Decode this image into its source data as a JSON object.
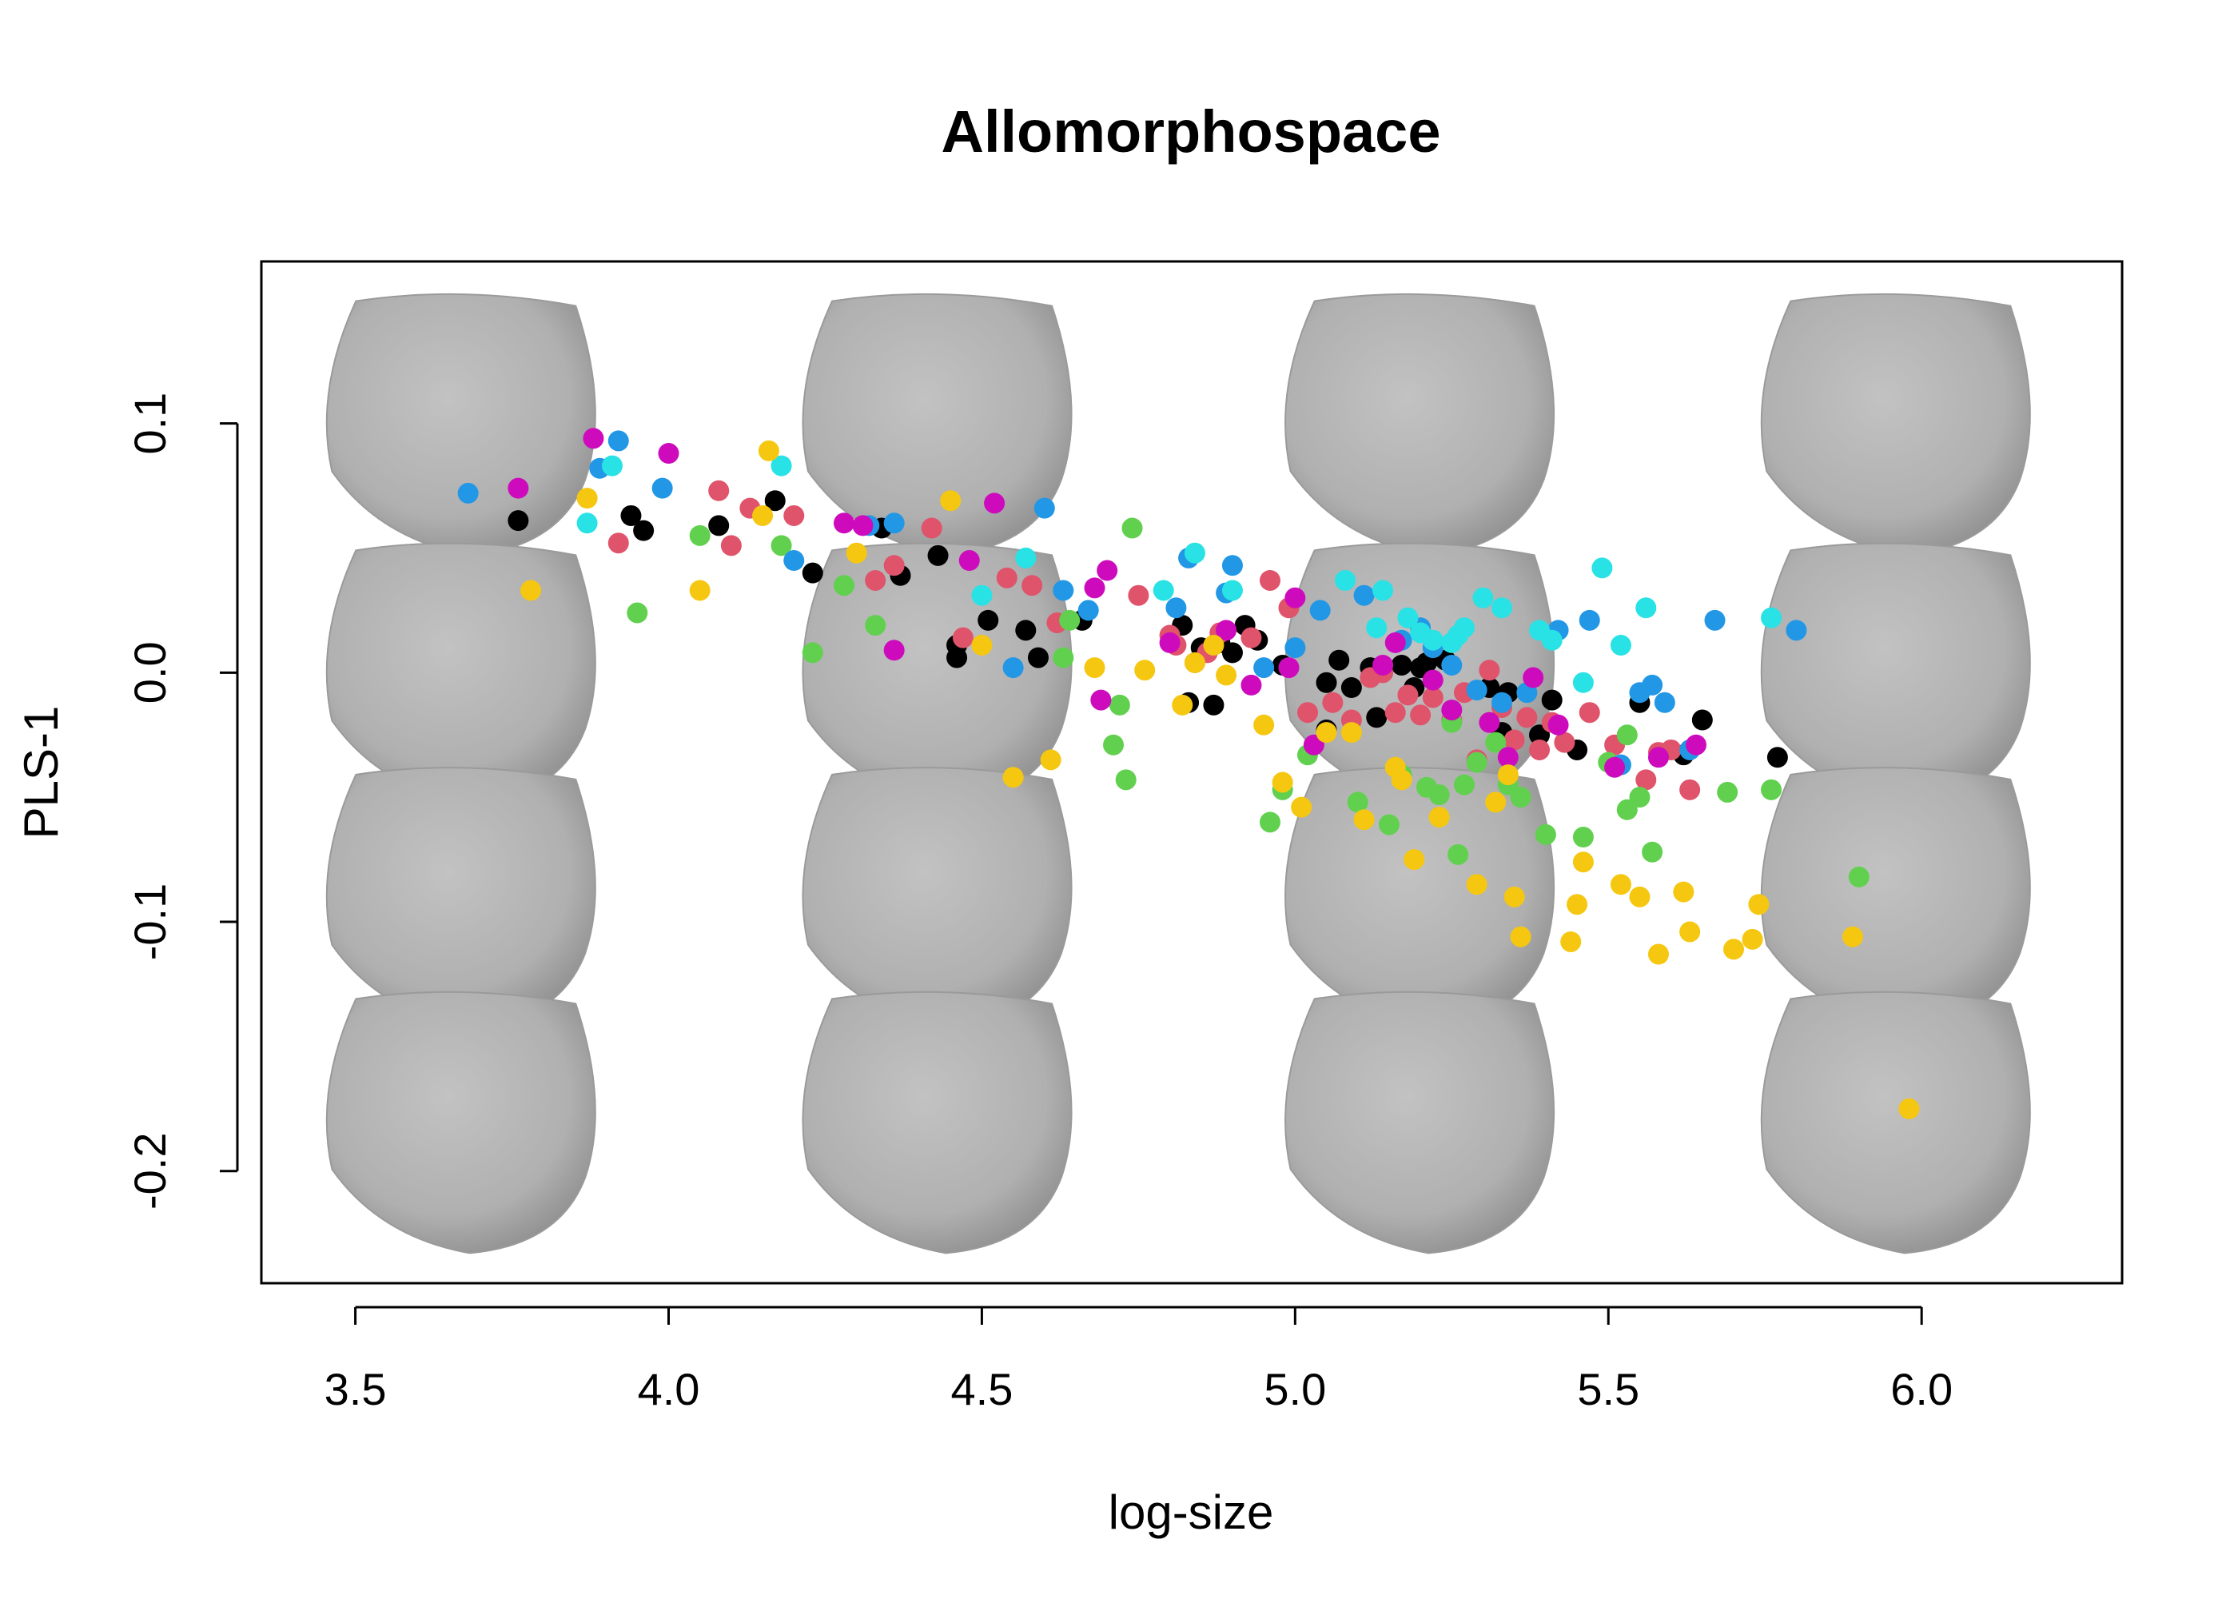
{
  "chart_data": {
    "type": "scatter",
    "title": "Allomorphospace",
    "xlabel": "log-size",
    "ylabel": "PLS-1",
    "xlim": [
      3.35,
      6.32
    ],
    "ylim": [
      -0.245,
      0.165
    ],
    "x_ticks": [
      "3.5",
      "4.0",
      "4.5",
      "5.0",
      "5.5",
      "6.0"
    ],
    "y_ticks": [
      "-0.2",
      "-0.1",
      "0.0",
      "0.1"
    ],
    "grid": false,
    "background_shapes": {
      "description_columns_x": [
        3.67,
        4.43,
        5.2,
        5.96
      ],
      "rows_y": [
        0.1,
        0.0,
        -0.09,
        -0.18
      ],
      "color": "#b4b4b4"
    },
    "series": [
      {
        "color": "#000000",
        "points": [
          [
            3.76,
            0.061
          ],
          [
            3.94,
            0.063
          ],
          [
            3.96,
            0.057
          ],
          [
            4.08,
            0.059
          ],
          [
            4.17,
            0.069
          ],
          [
            4.23,
            0.04
          ],
          [
            4.34,
            0.058
          ],
          [
            4.37,
            0.039
          ],
          [
            4.43,
            0.047
          ],
          [
            4.46,
            0.011
          ],
          [
            4.46,
            0.006
          ],
          [
            4.51,
            0.021
          ],
          [
            4.57,
            0.017
          ],
          [
            4.59,
            0.006
          ],
          [
            4.66,
            0.021
          ],
          [
            4.82,
            0.019
          ],
          [
            4.83,
            -0.012
          ],
          [
            4.85,
            0.01
          ],
          [
            4.87,
            -0.013
          ],
          [
            4.9,
            0.008
          ],
          [
            4.92,
            0.019
          ],
          [
            4.94,
            0.013
          ],
          [
            4.98,
            0.003
          ],
          [
            5.05,
            -0.004
          ],
          [
            5.07,
            0.005
          ],
          [
            5.09,
            -0.006
          ],
          [
            5.13,
            -0.018
          ],
          [
            5.17,
            0.003
          ],
          [
            5.19,
            -0.006
          ],
          [
            5.2,
            0.002
          ],
          [
            5.21,
            0.004
          ],
          [
            5.24,
            0.005
          ],
          [
            5.31,
            -0.006
          ],
          [
            5.33,
            -0.024
          ],
          [
            5.34,
            -0.008
          ],
          [
            5.39,
            -0.025
          ],
          [
            5.41,
            -0.011
          ],
          [
            5.45,
            -0.031
          ],
          [
            5.55,
            -0.012
          ],
          [
            5.62,
            -0.033
          ],
          [
            5.65,
            -0.019
          ],
          [
            5.77,
            -0.034
          ],
          [
            5.05,
            -0.023
          ],
          [
            5.12,
            0.002
          ],
          [
            4.88,
            0.012
          ]
        ]
      },
      {
        "color": "#df536b",
        "points": [
          [
            3.92,
            0.052
          ],
          [
            4.08,
            0.073
          ],
          [
            4.1,
            0.051
          ],
          [
            4.13,
            0.066
          ],
          [
            4.2,
            0.063
          ],
          [
            4.33,
            0.037
          ],
          [
            4.36,
            0.043
          ],
          [
            4.42,
            0.058
          ],
          [
            4.47,
            0.014
          ],
          [
            4.54,
            0.038
          ],
          [
            4.58,
            0.035
          ],
          [
            4.62,
            0.02
          ],
          [
            4.75,
            0.031
          ],
          [
            4.8,
            0.015
          ],
          [
            4.81,
            0.011
          ],
          [
            4.84,
            0.004
          ],
          [
            4.86,
            0.008
          ],
          [
            4.88,
            0.016
          ],
          [
            4.93,
            0.014
          ],
          [
            4.96,
            0.037
          ],
          [
            4.99,
            0.026
          ],
          [
            5.02,
            -0.016
          ],
          [
            5.06,
            -0.012
          ],
          [
            5.09,
            -0.019
          ],
          [
            5.12,
            -0.002
          ],
          [
            5.14,
            0.0
          ],
          [
            5.18,
            -0.009
          ],
          [
            5.2,
            -0.017
          ],
          [
            5.22,
            -0.01
          ],
          [
            5.25,
            -0.019
          ],
          [
            5.27,
            -0.008
          ],
          [
            5.31,
            0.001
          ],
          [
            5.33,
            -0.014
          ],
          [
            5.35,
            -0.027
          ],
          [
            5.37,
            -0.018
          ],
          [
            5.39,
            -0.031
          ],
          [
            5.41,
            -0.02
          ],
          [
            5.43,
            -0.028
          ],
          [
            5.47,
            -0.016
          ],
          [
            5.51,
            -0.029
          ],
          [
            5.56,
            -0.043
          ],
          [
            5.58,
            -0.032
          ],
          [
            5.6,
            -0.031
          ],
          [
            5.63,
            -0.047
          ],
          [
            5.29,
            -0.035
          ],
          [
            5.16,
            -0.016
          ]
        ]
      },
      {
        "color": "#61d04f",
        "points": [
          [
            3.95,
            0.024
          ],
          [
            4.05,
            0.055
          ],
          [
            4.18,
            0.051
          ],
          [
            4.23,
            0.008
          ],
          [
            4.28,
            0.035
          ],
          [
            4.33,
            0.019
          ],
          [
            4.63,
            0.006
          ],
          [
            4.64,
            0.021
          ],
          [
            4.71,
            -0.029
          ],
          [
            4.72,
            -0.013
          ],
          [
            4.73,
            -0.043
          ],
          [
            4.74,
            0.058
          ],
          [
            4.96,
            -0.06
          ],
          [
            4.98,
            -0.047
          ],
          [
            5.02,
            -0.033
          ],
          [
            5.1,
            -0.052
          ],
          [
            5.15,
            -0.061
          ],
          [
            5.17,
            -0.041
          ],
          [
            5.21,
            -0.046
          ],
          [
            5.23,
            -0.049
          ],
          [
            5.26,
            -0.073
          ],
          [
            5.27,
            -0.045
          ],
          [
            5.29,
            -0.036
          ],
          [
            5.32,
            -0.028
          ],
          [
            5.34,
            -0.045
          ],
          [
            5.36,
            -0.05
          ],
          [
            5.4,
            -0.065
          ],
          [
            5.46,
            -0.066
          ],
          [
            5.5,
            -0.036
          ],
          [
            5.53,
            -0.055
          ],
          [
            5.55,
            -0.05
          ],
          [
            5.57,
            -0.072
          ],
          [
            5.53,
            -0.025
          ],
          [
            5.69,
            -0.048
          ],
          [
            5.76,
            -0.047
          ],
          [
            5.9,
            -0.082
          ],
          [
            5.25,
            -0.02
          ]
        ]
      },
      {
        "color": "#2297e6",
        "points": [
          [
            3.68,
            0.072
          ],
          [
            3.89,
            0.082
          ],
          [
            3.92,
            0.093
          ],
          [
            3.99,
            0.074
          ],
          [
            4.2,
            0.045
          ],
          [
            4.32,
            0.059
          ],
          [
            4.36,
            0.06
          ],
          [
            4.55,
            0.002
          ],
          [
            4.6,
            0.066
          ],
          [
            4.63,
            0.033
          ],
          [
            4.67,
            0.025
          ],
          [
            4.81,
            0.026
          ],
          [
            4.83,
            0.046
          ],
          [
            4.89,
            0.032
          ],
          [
            4.9,
            0.043
          ],
          [
            4.95,
            0.002
          ],
          [
            5.0,
            0.01
          ],
          [
            5.04,
            0.025
          ],
          [
            5.11,
            0.031
          ],
          [
            5.17,
            0.013
          ],
          [
            5.2,
            0.018
          ],
          [
            5.22,
            0.01
          ],
          [
            5.25,
            0.003
          ],
          [
            5.29,
            -0.007
          ],
          [
            5.33,
            -0.012
          ],
          [
            5.37,
            -0.008
          ],
          [
            5.42,
            0.017
          ],
          [
            5.47,
            0.021
          ],
          [
            5.52,
            -0.037
          ],
          [
            5.57,
            -0.005
          ],
          [
            5.59,
            -0.012
          ],
          [
            5.63,
            -0.031
          ],
          [
            5.67,
            0.021
          ],
          [
            5.8,
            0.017
          ],
          [
            5.55,
            -0.008
          ]
        ]
      },
      {
        "color": "#28e2e5",
        "points": [
          [
            3.87,
            0.06
          ],
          [
            3.91,
            0.083
          ],
          [
            4.18,
            0.083
          ],
          [
            4.5,
            0.031
          ],
          [
            4.57,
            0.046
          ],
          [
            4.79,
            0.033
          ],
          [
            4.84,
            0.048
          ],
          [
            4.9,
            0.033
          ],
          [
            5.08,
            0.037
          ],
          [
            5.14,
            0.033
          ],
          [
            5.18,
            0.022
          ],
          [
            5.2,
            0.016
          ],
          [
            5.22,
            0.013
          ],
          [
            5.25,
            0.012
          ],
          [
            5.27,
            0.018
          ],
          [
            5.3,
            0.03
          ],
          [
            5.33,
            0.026
          ],
          [
            5.39,
            0.017
          ],
          [
            5.41,
            0.013
          ],
          [
            5.46,
            -0.004
          ],
          [
            5.49,
            0.042
          ],
          [
            5.52,
            0.011
          ],
          [
            5.56,
            0.026
          ],
          [
            5.76,
            0.022
          ],
          [
            5.13,
            0.018
          ],
          [
            5.26,
            0.015
          ]
        ]
      },
      {
        "color": "#cd0bbc",
        "points": [
          [
            3.76,
            0.074
          ],
          [
            3.88,
            0.094
          ],
          [
            4.0,
            0.088
          ],
          [
            4.28,
            0.06
          ],
          [
            4.31,
            0.059
          ],
          [
            4.36,
            0.009
          ],
          [
            4.48,
            0.045
          ],
          [
            4.52,
            0.068
          ],
          [
            4.68,
            0.034
          ],
          [
            4.69,
            -0.011
          ],
          [
            4.7,
            0.041
          ],
          [
            4.8,
            0.012
          ],
          [
            4.89,
            0.017
          ],
          [
            4.93,
            -0.005
          ],
          [
            4.99,
            0.002
          ],
          [
            5.03,
            -0.029
          ],
          [
            5.14,
            0.003
          ],
          [
            5.16,
            0.012
          ],
          [
            5.22,
            -0.003
          ],
          [
            5.25,
            -0.015
          ],
          [
            5.31,
            -0.02
          ],
          [
            5.34,
            -0.034
          ],
          [
            5.38,
            -0.002
          ],
          [
            5.42,
            -0.021
          ],
          [
            5.51,
            -0.038
          ],
          [
            5.58,
            -0.034
          ],
          [
            5.64,
            -0.029
          ],
          [
            5.0,
            0.03
          ]
        ]
      },
      {
        "color": "#f5c710",
        "points": [
          [
            3.78,
            0.033
          ],
          [
            3.87,
            0.07
          ],
          [
            4.05,
            0.033
          ],
          [
            4.15,
            0.063
          ],
          [
            4.16,
            0.089
          ],
          [
            4.3,
            0.048
          ],
          [
            4.45,
            0.069
          ],
          [
            4.5,
            0.011
          ],
          [
            4.55,
            -0.042
          ],
          [
            4.61,
            -0.035
          ],
          [
            4.68,
            0.002
          ],
          [
            4.76,
            0.001
          ],
          [
            4.82,
            -0.013
          ],
          [
            4.84,
            0.004
          ],
          [
            4.87,
            0.011
          ],
          [
            4.89,
            -0.001
          ],
          [
            4.95,
            -0.021
          ],
          [
            4.98,
            -0.044
          ],
          [
            5.01,
            -0.054
          ],
          [
            5.05,
            -0.024
          ],
          [
            5.09,
            -0.024
          ],
          [
            5.11,
            -0.059
          ],
          [
            5.16,
            -0.038
          ],
          [
            5.19,
            -0.075
          ],
          [
            5.23,
            -0.058
          ],
          [
            5.29,
            -0.085
          ],
          [
            5.32,
            -0.052
          ],
          [
            5.34,
            -0.041
          ],
          [
            5.35,
            -0.09
          ],
          [
            5.36,
            -0.106
          ],
          [
            5.44,
            -0.108
          ],
          [
            5.46,
            -0.076
          ],
          [
            5.45,
            -0.093
          ],
          [
            5.52,
            -0.085
          ],
          [
            5.55,
            -0.09
          ],
          [
            5.58,
            -0.113
          ],
          [
            5.62,
            -0.088
          ],
          [
            5.63,
            -0.104
          ],
          [
            5.7,
            -0.111
          ],
          [
            5.73,
            -0.107
          ],
          [
            5.74,
            -0.093
          ],
          [
            5.89,
            -0.106
          ],
          [
            5.98,
            -0.175
          ],
          [
            5.17,
            -0.043
          ]
        ]
      }
    ]
  }
}
